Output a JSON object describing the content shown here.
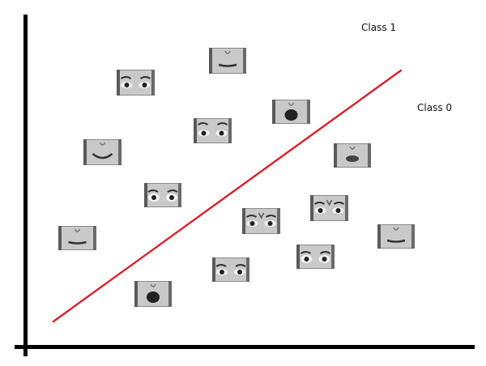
{
  "labels": {
    "class1": "Class 1",
    "class0": "Class 0"
  },
  "thumbnails": [
    {
      "feature": "mouth",
      "expression": "neutral"
    },
    {
      "feature": "eyes",
      "expression": "neutral"
    },
    {
      "feature": "mouth",
      "expression": "open"
    },
    {
      "feature": "eyes",
      "expression": "brows-raised"
    },
    {
      "feature": "mouth",
      "expression": "smile"
    },
    {
      "feature": "mouth",
      "expression": "pursed"
    },
    {
      "feature": "eyes",
      "expression": "wide"
    },
    {
      "feature": "eyes",
      "expression": "frown"
    },
    {
      "feature": "eyes",
      "expression": "frown"
    },
    {
      "feature": "mouth",
      "expression": "neutral"
    },
    {
      "feature": "mouth",
      "expression": "neutral"
    },
    {
      "feature": "eyes",
      "expression": "wide"
    },
    {
      "feature": "eyes",
      "expression": "neutral"
    },
    {
      "feature": "mouth",
      "expression": "open"
    }
  ],
  "colors": {
    "separator": "#d8202a",
    "axis": "#000000"
  }
}
